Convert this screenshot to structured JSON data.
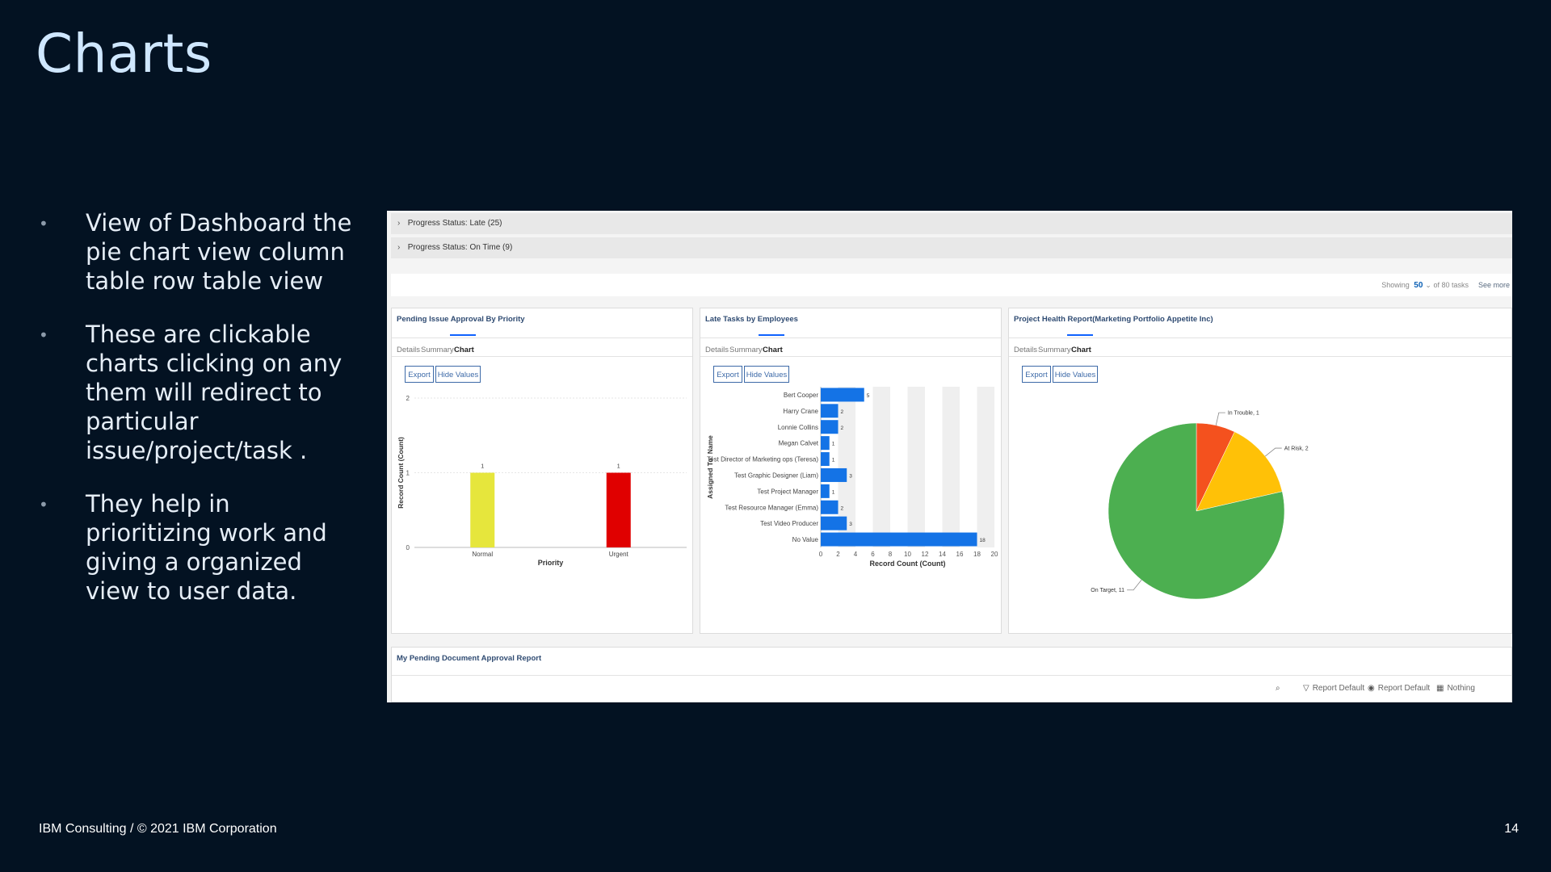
{
  "slide": {
    "title": "Charts",
    "bullets": [
      "View of Dashboard the pie chart view column table row table view",
      "These are clickable charts clicking on any them will redirect to particular issue/project/task .",
      "They help in prioritizing work and giving a organized view to user data."
    ],
    "footer": "IBM Consulting / © 2021 IBM Corporation",
    "page_number": "14"
  },
  "screenshot": {
    "groups": [
      "Progress Status: Late (25)",
      "Progress Status: On Time (9)"
    ],
    "showing": {
      "label": "Showing",
      "count": "50",
      "suffix": "of 80 tasks",
      "see_more": "See more"
    },
    "tabs": [
      "Details",
      "Summary",
      "Chart"
    ],
    "buttons": {
      "export": "Export",
      "hide_values": "Hide Values"
    },
    "cards": [
      {
        "title": "Pending Issue Approval By Priority"
      },
      {
        "title": "Late Tasks by Employees"
      },
      {
        "title": "Project Health Report(Marketing Portfolio Appetite Inc)"
      }
    ],
    "bottom": {
      "title": "My Pending Document Approval Report",
      "tools": [
        "Report Default",
        "Report Default",
        "Nothing"
      ]
    }
  },
  "chart_data": [
    {
      "type": "bar",
      "categories": [
        "Normal",
        "Urgent"
      ],
      "values": [
        1,
        1
      ],
      "colors": [
        "#e6e63c",
        "#e00000"
      ],
      "xlabel": "Priority",
      "ylabel": "Record Count (Count)",
      "ylim": [
        0,
        2
      ],
      "yticks": [
        0,
        1,
        2
      ]
    },
    {
      "type": "bar",
      "orientation": "horizontal",
      "categories": [
        "Bert Cooper",
        "Harry Crane",
        "Lonnie Collins",
        "Megan Calvet",
        "Test Director of Marketing ops (Teresa)",
        "Test Graphic Designer (Liam)",
        "Test Project Manager",
        "Test Resource Manager (Emma)",
        "Test Video Producer",
        "No Value"
      ],
      "values": [
        5,
        2,
        2,
        1,
        1,
        3,
        1,
        2,
        3,
        18
      ],
      "color": "#1473e6",
      "xlabel": "Record Count (Count)",
      "ylabel": "Assigned To: Name",
      "xlim": [
        0,
        20
      ],
      "xticks": [
        0,
        2,
        4,
        6,
        8,
        10,
        12,
        14,
        16,
        18,
        20
      ]
    },
    {
      "type": "pie",
      "labels": [
        "On Target",
        "In Trouble",
        "At Risk"
      ],
      "values": [
        11,
        1,
        2
      ],
      "colors": [
        "#4caf50",
        "#f4511e",
        "#ffc107"
      ],
      "data_labels": [
        "On Target, 11",
        "In Trouble, 1",
        "At Risk, 2"
      ]
    }
  ]
}
